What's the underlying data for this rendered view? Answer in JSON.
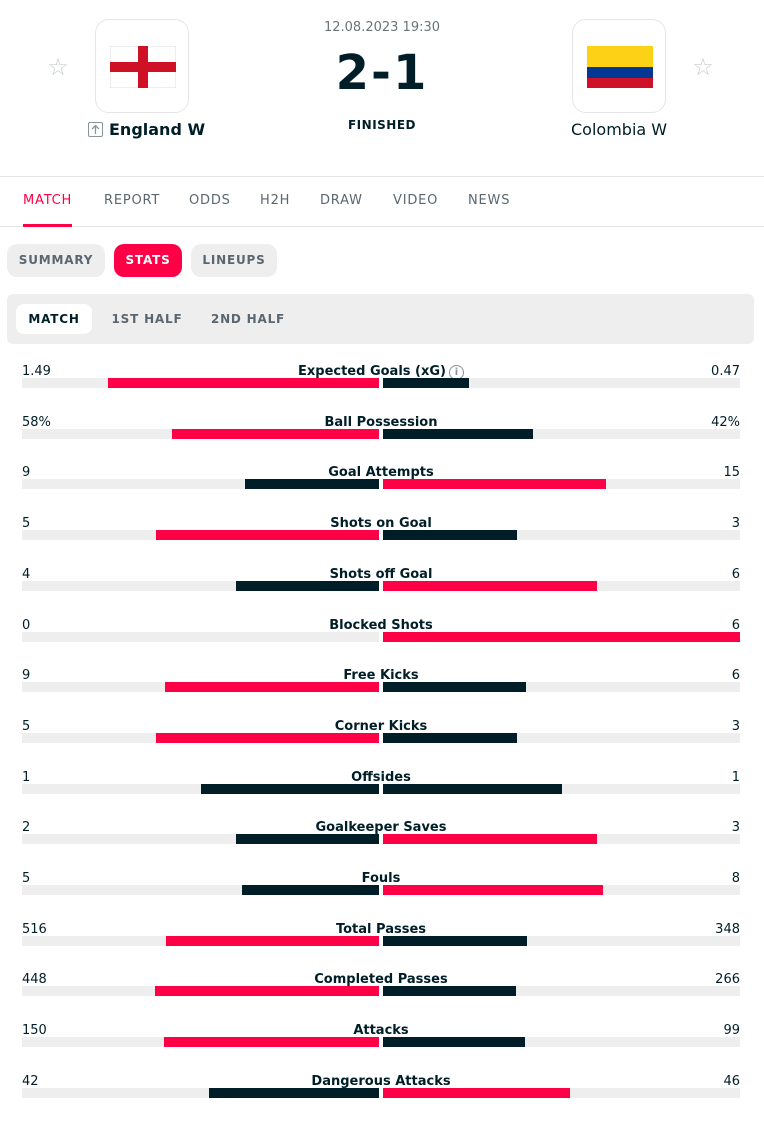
{
  "colors": {
    "accent": "#ff0046",
    "dark": "#001e28",
    "track": "#eeeeee"
  },
  "match": {
    "datetime": "12.08.2023 19:30",
    "score": "2-1",
    "status": "FINISHED",
    "home": {
      "name": "England W",
      "flag": "england-flag-icon",
      "winner_icon": "arrow-up-icon"
    },
    "away": {
      "name": "Colombia W",
      "flag": "colombia-flag-icon"
    }
  },
  "main_tabs": [
    {
      "label": "MATCH",
      "active": true
    },
    {
      "label": "REPORT"
    },
    {
      "label": "ODDS"
    },
    {
      "label": "H2H"
    },
    {
      "label": "DRAW"
    },
    {
      "label": "VIDEO"
    },
    {
      "label": "NEWS"
    }
  ],
  "sub_tabs": [
    {
      "label": "SUMMARY"
    },
    {
      "label": "STATS",
      "active": true
    },
    {
      "label": "LINEUPS"
    }
  ],
  "period_tabs": [
    {
      "label": "MATCH",
      "active": true
    },
    {
      "label": "1ST HALF"
    },
    {
      "label": "2ND HALF"
    }
  ],
  "stats": [
    {
      "label": "Expected Goals (xG)",
      "home": "1.49",
      "away": "0.47",
      "home_val": 1.49,
      "away_val": 0.47,
      "info_icon": "info-icon"
    },
    {
      "label": "Ball Possession",
      "home": "58%",
      "away": "42%",
      "home_val": 58,
      "away_val": 42
    },
    {
      "label": "Goal Attempts",
      "home": "9",
      "away": "15",
      "home_val": 9,
      "away_val": 15
    },
    {
      "label": "Shots on Goal",
      "home": "5",
      "away": "3",
      "home_val": 5,
      "away_val": 3
    },
    {
      "label": "Shots off Goal",
      "home": "4",
      "away": "6",
      "home_val": 4,
      "away_val": 6
    },
    {
      "label": "Blocked Shots",
      "home": "0",
      "away": "6",
      "home_val": 0,
      "away_val": 6
    },
    {
      "label": "Free Kicks",
      "home": "9",
      "away": "6",
      "home_val": 9,
      "away_val": 6
    },
    {
      "label": "Corner Kicks",
      "home": "5",
      "away": "3",
      "home_val": 5,
      "away_val": 3
    },
    {
      "label": "Offsides",
      "home": "1",
      "away": "1",
      "home_val": 1,
      "away_val": 1
    },
    {
      "label": "Goalkeeper Saves",
      "home": "2",
      "away": "3",
      "home_val": 2,
      "away_val": 3
    },
    {
      "label": "Fouls",
      "home": "5",
      "away": "8",
      "home_val": 5,
      "away_val": 8
    },
    {
      "label": "Total Passes",
      "home": "516",
      "away": "348",
      "home_val": 516,
      "away_val": 348
    },
    {
      "label": "Completed Passes",
      "home": "448",
      "away": "266",
      "home_val": 448,
      "away_val": 266
    },
    {
      "label": "Attacks",
      "home": "150",
      "away": "99",
      "home_val": 150,
      "away_val": 99
    },
    {
      "label": "Dangerous Attacks",
      "home": "42",
      "away": "46",
      "home_val": 42,
      "away_val": 46
    }
  ]
}
